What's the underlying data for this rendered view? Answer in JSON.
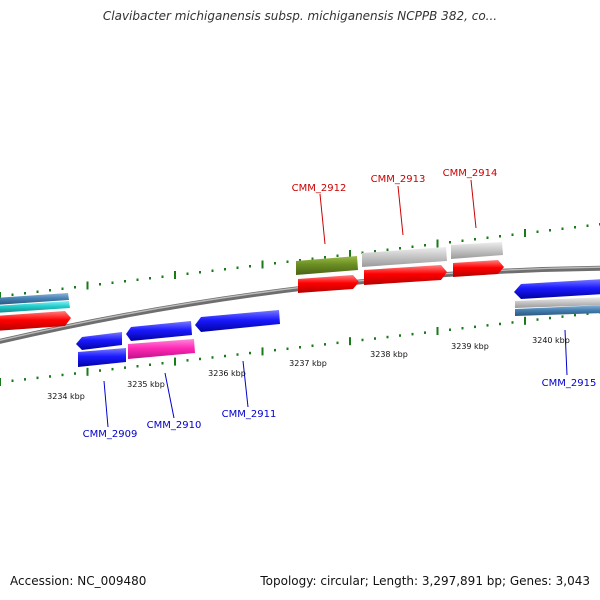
{
  "title": "Clavibacter michiganensis subsp. michiganensis NCPPB 382, co...",
  "footer": {
    "accession": "Accession: NC_009480",
    "summary": "Topology: circular; Length: 3,297,891 bp; Genes: 3,043"
  },
  "colors": {
    "backbone": "#7f7f7f",
    "tick": "#1a7a1a",
    "forward_label": "#cc0000",
    "reverse_label": "#0000cc",
    "red": "#ff0000",
    "blue": "#1a1aff",
    "olive": "#6b8e23",
    "grey": "#c0c0c0",
    "magenta": "#ff33bb",
    "cyan": "#22cccc",
    "steelblue": "#4682b4"
  },
  "scale_labels": [
    "3234 kbp",
    "3235 kbp",
    "3236 kbp",
    "3237 kbp",
    "3238 kbp",
    "3239 kbp",
    "3240 kbp"
  ],
  "gene_labels": {
    "forward": [
      "CMM_2912",
      "CMM_2913",
      "CMM_2914"
    ],
    "reverse": [
      "CMM_2909",
      "CMM_2910",
      "CMM_2911",
      "CMM_2915"
    ]
  }
}
